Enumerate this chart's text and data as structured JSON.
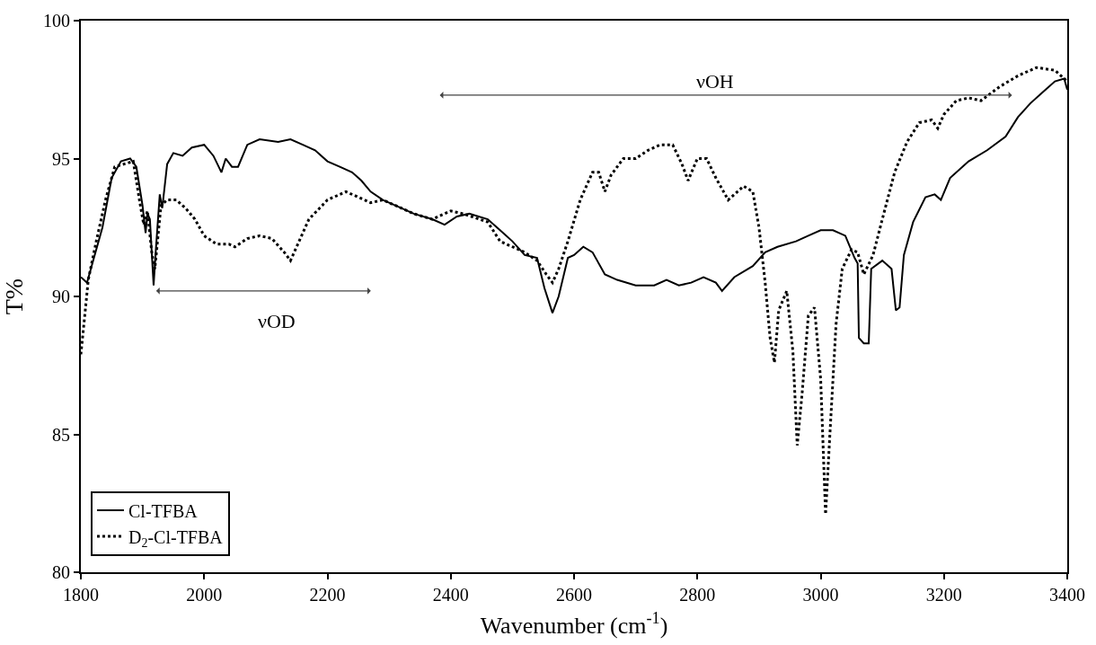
{
  "chart_data": {
    "type": "line",
    "xlabel": "Wavenumber (cm$^{-1}$)",
    "ylabel": "T%",
    "xlim": [
      1800,
      3400
    ],
    "xticks": [
      1800,
      2000,
      2200,
      2400,
      2600,
      2800,
      3000,
      3200,
      3400
    ],
    "ylim": [
      80,
      100
    ],
    "yticks": [
      80,
      85,
      90,
      95,
      100
    ],
    "grid": false,
    "legend": "bottom left",
    "marker": "none",
    "series": [
      {
        "name": "Cl-TFBA",
        "color": "#000000",
        "line_style": "solid",
        "x": [
          1800,
          1810,
          1820,
          1835,
          1850,
          1865,
          1880,
          1890,
          1900,
          1905,
          1908,
          1912,
          1918,
          1922,
          1928,
          1932,
          1940,
          1950,
          1965,
          1980,
          2000,
          2015,
          2028,
          2035,
          2045,
          2055,
          2070,
          2090,
          2120,
          2140,
          2160,
          2180,
          2200,
          2220,
          2240,
          2255,
          2270,
          2290,
          2310,
          2340,
          2370,
          2390,
          2410,
          2430,
          2460,
          2480,
          2500,
          2520,
          2540,
          2552,
          2565,
          2575,
          2590,
          2600,
          2615,
          2630,
          2650,
          2670,
          2700,
          2730,
          2750,
          2770,
          2790,
          2810,
          2830,
          2840,
          2860,
          2890,
          2910,
          2930,
          2960,
          2980,
          3000,
          3020,
          3040,
          3055,
          3060,
          3062,
          3070,
          3078,
          3082,
          3100,
          3115,
          3122,
          3128,
          3135,
          3150,
          3170,
          3185,
          3195,
          3210,
          3240,
          3270,
          3300,
          3320,
          3340,
          3360,
          3380,
          3395,
          3400
        ],
        "values": [
          90.7,
          90.5,
          91.3,
          92.5,
          94.3,
          94.9,
          95.0,
          94.7,
          93.3,
          92.3,
          93.0,
          92.8,
          90.4,
          91.8,
          93.7,
          93.2,
          94.8,
          95.2,
          95.1,
          95.4,
          95.5,
          95.1,
          94.5,
          95.0,
          94.7,
          94.7,
          95.5,
          95.7,
          95.6,
          95.7,
          95.5,
          95.3,
          94.9,
          94.7,
          94.5,
          94.2,
          93.8,
          93.5,
          93.3,
          93.0,
          92.8,
          92.6,
          92.9,
          93.0,
          92.8,
          92.4,
          92.0,
          91.5,
          91.4,
          90.3,
          89.4,
          90.0,
          91.4,
          91.5,
          91.8,
          91.6,
          90.8,
          90.6,
          90.4,
          90.4,
          90.6,
          90.4,
          90.5,
          90.7,
          90.5,
          90.2,
          90.7,
          91.1,
          91.6,
          91.8,
          92.0,
          92.2,
          92.4,
          92.4,
          92.2,
          91.4,
          91.2,
          88.5,
          88.3,
          88.3,
          91.0,
          91.3,
          91.0,
          89.5,
          89.6,
          91.5,
          92.7,
          93.6,
          93.7,
          93.5,
          94.3,
          94.9,
          95.3,
          95.8,
          96.5,
          97.0,
          97.4,
          97.8,
          97.9,
          97.5
        ]
      },
      {
        "name": "D$_{2}$-Cl-TFBA",
        "color": "#000000",
        "line_style": "dotted",
        "x": [
          1800,
          1805,
          1812,
          1825,
          1840,
          1855,
          1870,
          1885,
          1895,
          1902,
          1908,
          1915,
          1920,
          1930,
          1940,
          1955,
          1970,
          1985,
          2000,
          2020,
          2040,
          2050,
          2070,
          2090,
          2110,
          2130,
          2140,
          2150,
          2170,
          2200,
          2230,
          2250,
          2270,
          2290,
          2310,
          2340,
          2370,
          2400,
          2420,
          2460,
          2480,
          2500,
          2520,
          2540,
          2555,
          2565,
          2575,
          2590,
          2610,
          2630,
          2640,
          2650,
          2660,
          2680,
          2700,
          2720,
          2740,
          2760,
          2775,
          2785,
          2800,
          2815,
          2830,
          2850,
          2860,
          2875,
          2890,
          2900,
          2910,
          2918,
          2925,
          2932,
          2945,
          2955,
          2962,
          2970,
          2980,
          2990,
          3000,
          3008,
          3015,
          3025,
          3035,
          3050,
          3060,
          3070,
          3085,
          3100,
          3120,
          3140,
          3160,
          3180,
          3190,
          3200,
          3220,
          3240,
          3260,
          3290,
          3320,
          3350,
          3380,
          3400
        ],
        "values": [
          87.9,
          89.0,
          90.6,
          92.0,
          93.5,
          94.7,
          94.8,
          94.9,
          93.5,
          92.6,
          93.1,
          91.6,
          91.0,
          93.3,
          93.5,
          93.5,
          93.2,
          92.8,
          92.2,
          91.9,
          91.9,
          91.8,
          92.1,
          92.2,
          92.1,
          91.6,
          91.3,
          91.8,
          92.8,
          93.5,
          93.8,
          93.6,
          93.4,
          93.5,
          93.3,
          93.0,
          92.8,
          93.1,
          93.0,
          92.7,
          92.0,
          91.8,
          91.6,
          91.3,
          90.8,
          90.5,
          91.0,
          92.0,
          93.5,
          94.5,
          94.5,
          93.8,
          94.4,
          95.0,
          95.0,
          95.3,
          95.5,
          95.5,
          94.8,
          94.2,
          95.0,
          95.0,
          94.3,
          93.5,
          93.7,
          94.0,
          93.8,
          92.5,
          90.5,
          88.5,
          87.6,
          89.5,
          90.2,
          88.0,
          84.6,
          86.5,
          89.3,
          89.6,
          87.0,
          82.1,
          85.0,
          89.0,
          91.0,
          91.7,
          91.6,
          90.8,
          91.5,
          92.8,
          94.5,
          95.6,
          96.3,
          96.4,
          96.1,
          96.6,
          97.1,
          97.2,
          97.1,
          97.6,
          98.0,
          98.3,
          98.2,
          97.8
        ]
      }
    ],
    "annotations": [
      "νOH",
      "νOD"
    ]
  }
}
